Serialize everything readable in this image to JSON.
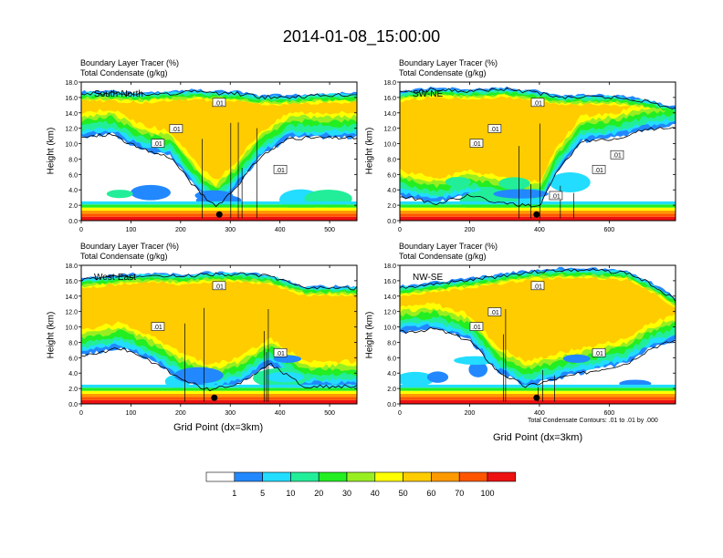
{
  "title": "2014-01-08_15:00:00",
  "footnote": "Total Condensate Contours: .01 to .01 by .000",
  "colors": {
    "levels": [
      "#ffffff",
      "#2288ff",
      "#22ddff",
      "#22ee99",
      "#22ee22",
      "#99ee22",
      "#ffff00",
      "#ffcc00",
      "#ff9900",
      "#ff5500",
      "#ee1111"
    ],
    "contour": "#000000"
  },
  "colorbar": {
    "labels": [
      "1",
      "5",
      "10",
      "20",
      "30",
      "40",
      "50",
      "60",
      "70",
      "100"
    ]
  },
  "chart_data": [
    {
      "type": "heatmap",
      "title": "South-North",
      "line1": "Boundary Layer Tracer   (%)",
      "line2": "Total Condensate   (g/kg)",
      "ylabel": "Height (km)",
      "xlabel": "",
      "xlim": [
        0,
        555
      ],
      "ylim": [
        0,
        18
      ],
      "xticks": [
        "0",
        "100",
        "200",
        "300",
        "400",
        "500"
      ],
      "yticks": [
        "0.0",
        "2.0",
        "4.0",
        "6.0",
        "8.0",
        "10.0",
        "12.0",
        "14.0",
        "16.0",
        "18.0"
      ],
      "contour_labels": [
        ".01",
        ".01",
        ".01",
        ".01"
      ],
      "marker": {
        "x": 278,
        "y": 0.8
      },
      "profile": [
        {
          "x": 0,
          "bot": 10.5,
          "top": 17.0
        },
        {
          "x": 60,
          "bot": 11.0,
          "top": 17.0
        },
        {
          "x": 120,
          "bot": 9.0,
          "top": 16.8
        },
        {
          "x": 180,
          "bot": 8.0,
          "top": 17.0
        },
        {
          "x": 230,
          "bot": 4.0,
          "top": 17.2
        },
        {
          "x": 270,
          "bot": 1.5,
          "top": 17.0
        },
        {
          "x": 310,
          "bot": 4.0,
          "top": 17.0
        },
        {
          "x": 360,
          "bot": 8.0,
          "top": 16.5
        },
        {
          "x": 420,
          "bot": 10.5,
          "top": 16.5
        },
        {
          "x": 480,
          "bot": 10.5,
          "top": 16.7
        },
        {
          "x": 555,
          "bot": 10.5,
          "top": 16.8
        }
      ]
    },
    {
      "type": "heatmap",
      "title": "SW-NE",
      "line1": "Boundary Layer Tracer   (%)",
      "line2": "Total Condensate   (g/kg)",
      "ylabel": "Height (km)",
      "xlabel": "",
      "xlim": [
        0,
        790
      ],
      "ylim": [
        0,
        18
      ],
      "xticks": [
        "0",
        "200",
        "400",
        "600"
      ],
      "yticks": [
        "0.0",
        "2.0",
        "4.0",
        "6.0",
        "8.0",
        "10.0",
        "12.0",
        "14.0",
        "16.0",
        "18.0"
      ],
      "contour_labels": [
        ".01",
        ".01",
        ".01",
        ".01",
        ".01",
        ".01"
      ],
      "marker": {
        "x": 392,
        "y": 0.8
      },
      "profile": [
        {
          "x": 0,
          "bot": 3.0,
          "top": 17.0
        },
        {
          "x": 100,
          "bot": 2.0,
          "top": 17.5
        },
        {
          "x": 200,
          "bot": 3.0,
          "top": 17.2
        },
        {
          "x": 300,
          "bot": 2.0,
          "top": 17.5
        },
        {
          "x": 400,
          "bot": 1.5,
          "top": 17.0
        },
        {
          "x": 450,
          "bot": 6.0,
          "top": 16.5
        },
        {
          "x": 520,
          "bot": 10.0,
          "top": 16.5
        },
        {
          "x": 620,
          "bot": 10.5,
          "top": 16.5
        },
        {
          "x": 700,
          "bot": 11.5,
          "top": 16.0
        },
        {
          "x": 790,
          "bot": 12.0,
          "top": 15.0
        }
      ]
    },
    {
      "type": "heatmap",
      "title": "West-East",
      "line1": "Boundary Layer Tracer   (%)",
      "line2": "Total Condensate   (g/kg)",
      "ylabel": "Height (km)",
      "xlabel": "Grid Point (dx=3km)",
      "xlim": [
        0,
        555
      ],
      "ylim": [
        0,
        18
      ],
      "xticks": [
        "0",
        "100",
        "200",
        "300",
        "400",
        "500"
      ],
      "yticks": [
        "0.0",
        "2.0",
        "4.0",
        "6.0",
        "8.0",
        "10.0",
        "12.0",
        "14.0",
        "16.0",
        "18.0"
      ],
      "contour_labels": [
        ".01",
        ".01",
        ".01"
      ],
      "marker": {
        "x": 268,
        "y": 0.8
      },
      "profile": [
        {
          "x": 0,
          "bot": 6.0,
          "top": 16.5
        },
        {
          "x": 80,
          "bot": 7.0,
          "top": 17.0
        },
        {
          "x": 150,
          "bot": 5.0,
          "top": 17.2
        },
        {
          "x": 200,
          "bot": 3.0,
          "top": 17.0
        },
        {
          "x": 260,
          "bot": 1.5,
          "top": 17.3
        },
        {
          "x": 320,
          "bot": 2.5,
          "top": 17.3
        },
        {
          "x": 380,
          "bot": 5.0,
          "top": 17.0
        },
        {
          "x": 450,
          "bot": 2.0,
          "top": 15.5
        },
        {
          "x": 555,
          "bot": 2.0,
          "top": 15.5
        }
      ]
    },
    {
      "type": "heatmap",
      "title": "NW-SE",
      "line1": "Boundary Layer Tracer   (%)",
      "line2": "Total Condensate   (g/kg)",
      "ylabel": "Height (km)",
      "xlabel": "Grid Point (dx=3km)",
      "xlim": [
        0,
        790
      ],
      "ylim": [
        0,
        18
      ],
      "xticks": [
        "0",
        "200",
        "400",
        "600"
      ],
      "yticks": [
        "0.0",
        "2.0",
        "4.0",
        "6.0",
        "8.0",
        "10.0",
        "12.0",
        "14.0",
        "16.0",
        "18.0"
      ],
      "contour_labels": [
        ".01",
        ".01",
        ".01",
        ".01"
      ],
      "marker": {
        "x": 392,
        "y": 0.8
      },
      "profile": [
        {
          "x": 0,
          "bot": 9.0,
          "top": 15.5
        },
        {
          "x": 100,
          "bot": 9.5,
          "top": 16.0
        },
        {
          "x": 200,
          "bot": 8.0,
          "top": 16.5
        },
        {
          "x": 280,
          "bot": 4.0,
          "top": 17.0
        },
        {
          "x": 360,
          "bot": 2.0,
          "top": 17.5
        },
        {
          "x": 450,
          "bot": 3.0,
          "top": 17.8
        },
        {
          "x": 550,
          "bot": 4.0,
          "top": 17.8
        },
        {
          "x": 650,
          "bot": 5.0,
          "top": 17.5
        },
        {
          "x": 720,
          "bot": 7.0,
          "top": 16.0
        },
        {
          "x": 790,
          "bot": 8.0,
          "top": 14.0
        }
      ]
    }
  ]
}
